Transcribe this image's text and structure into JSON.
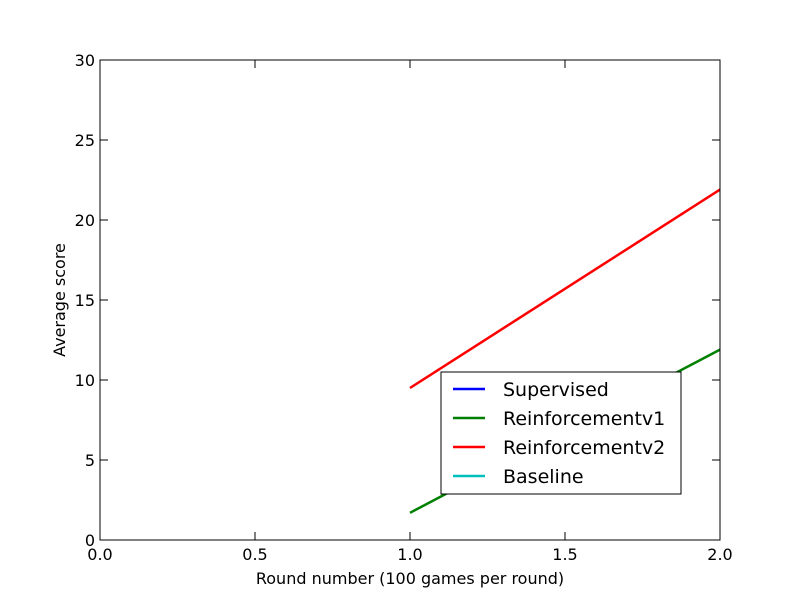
{
  "chart_data": {
    "type": "line",
    "title": "",
    "xlabel": "Round number (100 games per round)",
    "ylabel": "Average score",
    "xlim": [
      0.0,
      2.0
    ],
    "ylim": [
      0,
      30
    ],
    "x_ticks": [
      "0.0",
      "0.5",
      "1.0",
      "1.5",
      "2.0"
    ],
    "y_ticks": [
      "0",
      "5",
      "10",
      "15",
      "20",
      "25",
      "30"
    ],
    "grid": false,
    "legend_position": "lower-right",
    "series": [
      {
        "name": "Supervised",
        "color": "#0000ff",
        "x": [],
        "y": []
      },
      {
        "name": "Reinforcementv1",
        "color": "#008000",
        "x": [
          1.0,
          2.0
        ],
        "y": [
          1.7,
          11.9
        ]
      },
      {
        "name": "Reinforcementv2",
        "color": "#ff0000",
        "x": [
          1.0,
          2.0
        ],
        "y": [
          9.5,
          21.9
        ]
      },
      {
        "name": "Baseline",
        "color": "#00bfbf",
        "x": [],
        "y": []
      }
    ]
  }
}
